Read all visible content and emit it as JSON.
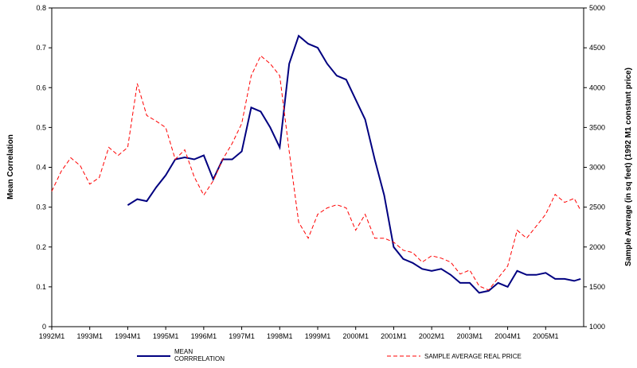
{
  "chart_data": {
    "type": "line",
    "y_label": "Mean Correlation",
    "y2_label": "Sample Average (in sq feet)  (1992 M1 constant  price)",
    "x": [
      1992,
      1992.25,
      1992.5,
      1992.75,
      1993,
      1993.25,
      1993.5,
      1993.75,
      1994,
      1994.25,
      1994.5,
      1994.75,
      1995,
      1995.25,
      1995.5,
      1995.75,
      1996,
      1996.25,
      1996.5,
      1996.75,
      1997,
      1997.25,
      1997.5,
      1997.75,
      1998,
      1998.25,
      1998.5,
      1998.75,
      1999,
      1999.25,
      1999.5,
      1999.75,
      2000,
      2000.25,
      2000.5,
      2000.75,
      2001,
      2001.25,
      2001.5,
      2001.75,
      2002,
      2002.25,
      2002.5,
      2002.75,
      2003,
      2003.25,
      2003.5,
      2003.75,
      2004,
      2004.25,
      2004.5,
      2004.75,
      2005,
      2005.25,
      2005.5,
      2005.75,
      2005.92
    ],
    "series": [
      {
        "name": "MEAN CORRRELATION",
        "color": "#000080",
        "dash": false,
        "values": [
          null,
          null,
          null,
          null,
          null,
          null,
          null,
          null,
          0.305,
          0.32,
          0.315,
          0.35,
          0.38,
          0.42,
          0.425,
          0.42,
          0.43,
          0.37,
          0.42,
          0.42,
          0.44,
          0.55,
          0.54,
          0.5,
          0.45,
          0.66,
          0.73,
          0.71,
          0.7,
          0.66,
          0.63,
          0.62,
          0.57,
          0.52,
          0.42,
          0.33,
          0.2,
          0.17,
          0.16,
          0.145,
          0.14,
          0.145,
          0.13,
          0.11,
          0.11,
          0.085,
          0.09,
          0.11,
          0.1,
          0.14,
          0.13,
          0.13,
          0.135,
          0.12,
          0.12,
          0.115,
          0.12
        ]
      },
      {
        "name": "SAMPLE AVERAGE REAL PRICE",
        "color": "#ff0000",
        "dash": true,
        "axis": "y2",
        "values": [
          2700,
          2950,
          3120,
          3020,
          2790,
          2870,
          3250,
          3150,
          3250,
          4050,
          3650,
          3580,
          3500,
          3100,
          3220,
          2880,
          2650,
          2830,
          3100,
          3300,
          3550,
          4150,
          4400,
          4300,
          4150,
          3200,
          2310,
          2110,
          2410,
          2490,
          2530,
          2490,
          2210,
          2410,
          2110,
          2110,
          2060,
          1960,
          1930,
          1810,
          1890,
          1860,
          1810,
          1660,
          1710,
          1510,
          1460,
          1610,
          1760,
          2210,
          2110,
          2260,
          2410,
          2660,
          2560,
          2610,
          2460
        ]
      }
    ],
    "xlim": [
      1992,
      2006
    ],
    "xticks": [
      {
        "value": 1992,
        "label": "1992M1"
      },
      {
        "value": 1993,
        "label": "1993M1"
      },
      {
        "value": 1994,
        "label": "1994M1"
      },
      {
        "value": 1995,
        "label": "1995M1"
      },
      {
        "value": 1996,
        "label": "1996M1"
      },
      {
        "value": 1997,
        "label": "1997M1"
      },
      {
        "value": 1998,
        "label": "1998M1"
      },
      {
        "value": 1999,
        "label": "1999M1"
      },
      {
        "value": 2000,
        "label": "2000M1"
      },
      {
        "value": 2001,
        "label": "2001M1"
      },
      {
        "value": 2002,
        "label": "2002M1"
      },
      {
        "value": 2003,
        "label": "2003M1"
      },
      {
        "value": 2004,
        "label": "2004M1"
      },
      {
        "value": 2005,
        "label": "2005M1"
      }
    ],
    "ylim": [
      0,
      0.8
    ],
    "yticks": [
      0,
      0.1,
      0.2,
      0.3,
      0.4,
      0.5,
      0.6,
      0.7,
      0.8
    ],
    "y2lim": [
      1000,
      5000
    ],
    "y2ticks": [
      1000,
      1500,
      2000,
      2500,
      3000,
      3500,
      4000,
      4500,
      5000
    ],
    "grid": false,
    "legend": "bottom"
  }
}
